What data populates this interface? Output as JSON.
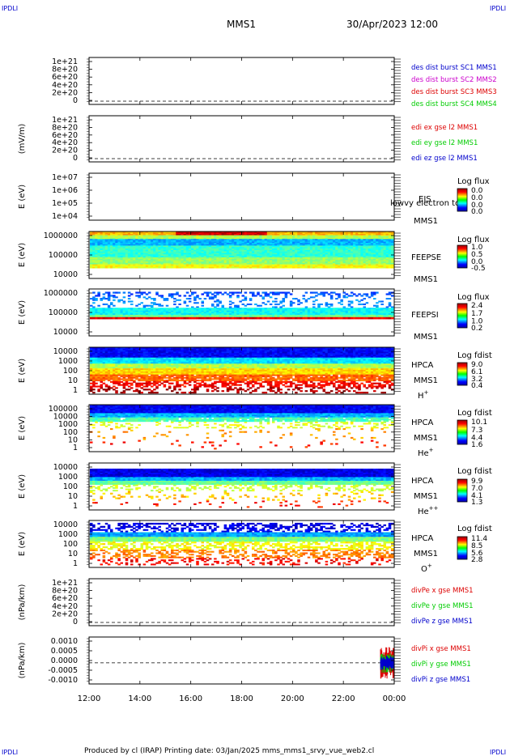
{
  "header": {
    "corner_tl": "IPDLI",
    "corner_tr": "IPDLI",
    "corner_bl": "IPDLI",
    "corner_br": "IPDLI",
    "mission": "MMS1",
    "datetime": "30/Apr/2023 12:00"
  },
  "footer": {
    "text": "Produced by cl (IRAP)   Printing date: 03/Jan/2025   mms_mms1_srvy_vue_web2.cl"
  },
  "colors": {
    "blue": "#0000cc",
    "magenta": "#cc00cc",
    "red": "#dd0000",
    "green": "#00cc00"
  },
  "chart_data": {
    "type": "heatmap",
    "x_ticks": [
      "12:00",
      "14:00",
      "16:00",
      "18:00",
      "20:00",
      "22:00",
      "00:00"
    ],
    "panels": [
      {
        "id": "des-dist",
        "ylabel": "",
        "yticks": [
          "1e+21",
          "8e+20",
          "6e+20",
          "4e+20",
          "2e+20",
          "0"
        ],
        "legend": [
          {
            "text": "des dist burst SC1 MMS1",
            "color": "#0000cc"
          },
          {
            "text": "des dist burst SC2 MMS2",
            "color": "#cc00cc"
          },
          {
            "text": "des dist burst SC3 MMS3",
            "color": "#dd0000"
          },
          {
            "text": "des dist burst SC4 MMS4",
            "color": "#00cc00"
          }
        ]
      },
      {
        "id": "edi",
        "ylabel": "(mV/m)",
        "yticks": [
          "1e+21",
          "8e+20",
          "6e+20",
          "4e+20",
          "2e+20",
          "0"
        ],
        "legend": [
          {
            "text": "edi ex gse l2 MMS1",
            "color": "#dd0000"
          },
          {
            "text": "edi ey gse l2 MMS1",
            "color": "#00cc00"
          },
          {
            "text": "edi ez gse l2 MMS1",
            "color": "#0000cc"
          }
        ]
      },
      {
        "id": "eis",
        "ylabel": "E (eV)",
        "yticks": [
          "1e+07",
          "1e+06",
          "1e+05",
          "1e+04"
        ],
        "instrument": [
          "EIS",
          "MMS1"
        ],
        "overlay": "lowvy electron to",
        "cb_title": "Log flux",
        "cb_ticks": [
          "0.0",
          "0.0",
          "0.0",
          "0.0"
        ]
      },
      {
        "id": "feepse",
        "ylabel": "E (eV)",
        "yticks": [
          "1000000",
          "100000",
          "10000"
        ],
        "instrument": [
          "FEEPSE",
          "MMS1"
        ],
        "cb_title": "Log flux",
        "cb_ticks": [
          "1.0",
          "0.5",
          "0.0",
          "-0.5"
        ]
      },
      {
        "id": "feepsi",
        "ylabel": "E (eV)",
        "yticks": [
          "1000000",
          "100000",
          "10000"
        ],
        "instrument": [
          "FEEPSI",
          "MMS1"
        ],
        "cb_title": "Log flux",
        "cb_ticks": [
          "2.4",
          "1.7",
          "1.0",
          "0.2"
        ]
      },
      {
        "id": "hpca-h",
        "ylabel": "E (eV)",
        "yticks": [
          "10000",
          "1000",
          "100",
          "10",
          "1"
        ],
        "instrument": [
          "HPCA",
          "MMS1"
        ],
        "species": "H",
        "species_sup": "+",
        "cb_title": "Log fdist",
        "cb_ticks": [
          "9.0",
          "6.1",
          "3.2",
          "0.4"
        ]
      },
      {
        "id": "hpca-he",
        "ylabel": "E (eV)",
        "yticks": [
          "100000",
          "10000",
          "1000",
          "100",
          "10",
          "1"
        ],
        "instrument": [
          "HPCA",
          "MMS1"
        ],
        "species": "He",
        "species_sup": "+",
        "cb_title": "Log fdist",
        "cb_ticks": [
          "10.1",
          "7.3",
          "4.4",
          "1.6"
        ]
      },
      {
        "id": "hpca-hepp",
        "ylabel": "E (eV)",
        "yticks": [
          "10000",
          "1000",
          "100",
          "10",
          "1"
        ],
        "instrument": [
          "HPCA",
          "MMS1"
        ],
        "species": "He",
        "species_sup": "++",
        "cb_title": "Log fdist",
        "cb_ticks": [
          "9.9",
          "7.0",
          "4.1",
          "1.3"
        ]
      },
      {
        "id": "hpca-o",
        "ylabel": "E (eV)",
        "yticks": [
          "10000",
          "1000",
          "100",
          "10",
          "1"
        ],
        "instrument": [
          "HPCA",
          "MMS1"
        ],
        "species": "O",
        "species_sup": "+",
        "cb_title": "Log fdist",
        "cb_ticks": [
          "11.4",
          "8.5",
          "5.6",
          "2.8"
        ]
      },
      {
        "id": "divpe",
        "ylabel": "(nPa/km)",
        "yticks": [
          "1e+21",
          "8e+20",
          "6e+20",
          "4e+20",
          "2e+20",
          "0"
        ],
        "legend": [
          {
            "text": "divPe x gse MMS1",
            "color": "#dd0000"
          },
          {
            "text": "divPe y gse MMS1",
            "color": "#00cc00"
          },
          {
            "text": "divPe z gse MMS1",
            "color": "#0000cc"
          }
        ]
      },
      {
        "id": "divpi",
        "ylabel": "(nPa/km)",
        "yticks": [
          "0.0010",
          "0.0005",
          "0.0000",
          "-0.0005",
          "-0.0010"
        ],
        "legend": [
          {
            "text": "divPi x gse MMS1",
            "color": "#dd0000"
          },
          {
            "text": "divPi y gse MMS1",
            "color": "#00cc00"
          },
          {
            "text": "divPi z gse MMS1",
            "color": "#0000cc"
          }
        ]
      }
    ]
  }
}
